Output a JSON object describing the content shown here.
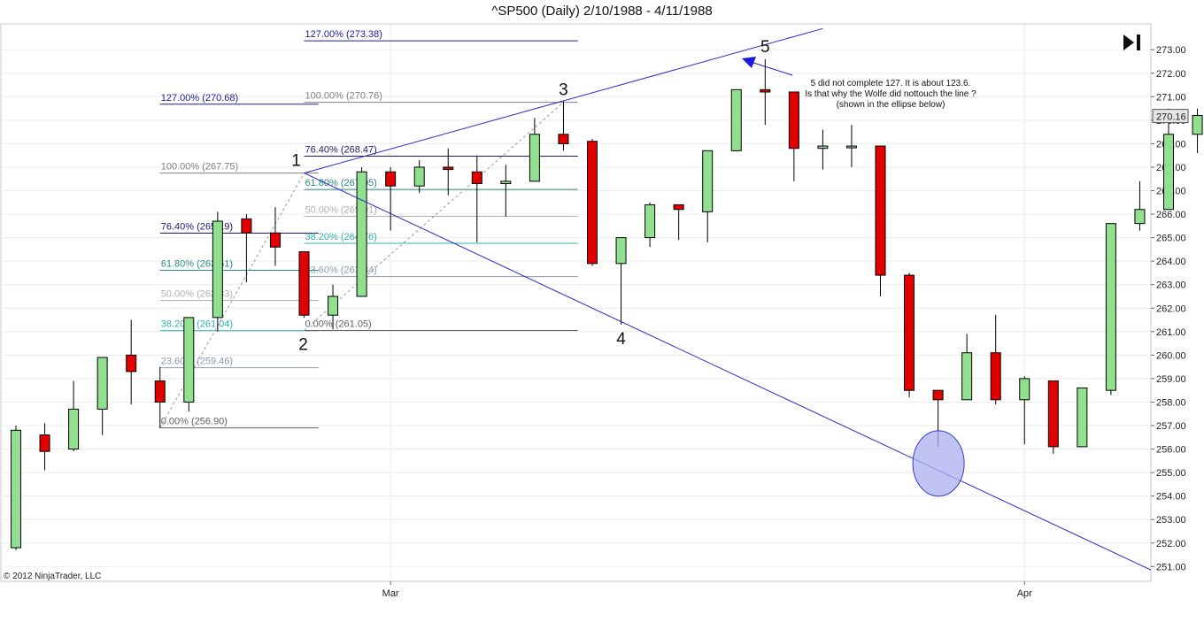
{
  "chart_data": {
    "type": "candlestick",
    "title": "^SP500 (Daily)  2/10/1988 - 4/11/1988",
    "ylim": [
      250.5,
      274.0
    ],
    "y_ticks": [
      251,
      252,
      253,
      254,
      255,
      256,
      257,
      258,
      259,
      260,
      261,
      262,
      263,
      264,
      265,
      266,
      267,
      268,
      269,
      270,
      271,
      272,
      273
    ],
    "x_ticks": [
      {
        "label": "Mar",
        "index": 13
      },
      {
        "label": "Apr",
        "index": 35
      }
    ],
    "last_price": "270.16",
    "grid": true,
    "up_color": "#90e090",
    "down_color": "#e00000",
    "candles": [
      {
        "o": 251.8,
        "h": 257.0,
        "l": 251.7,
        "c": 256.8
      },
      {
        "o": 256.6,
        "h": 257.1,
        "l": 255.1,
        "c": 255.9
      },
      {
        "o": 256.0,
        "h": 258.9,
        "l": 255.9,
        "c": 257.7
      },
      {
        "o": 257.7,
        "h": 259.9,
        "l": 256.6,
        "c": 259.9
      },
      {
        "o": 260.0,
        "h": 261.5,
        "l": 257.9,
        "c": 259.3
      },
      {
        "o": 258.9,
        "h": 259.5,
        "l": 256.9,
        "c": 258.0
      },
      {
        "o": 258.0,
        "h": 261.6,
        "l": 257.6,
        "c": 261.6
      },
      {
        "o": 261.6,
        "h": 266.1,
        "l": 261.0,
        "c": 265.7
      },
      {
        "o": 265.8,
        "h": 266.0,
        "l": 263.1,
        "c": 265.2
      },
      {
        "o": 265.2,
        "h": 266.3,
        "l": 263.8,
        "c": 264.6
      },
      {
        "o": 264.4,
        "h": 264.4,
        "l": 261.6,
        "c": 261.7
      },
      {
        "o": 261.7,
        "h": 263.0,
        "l": 261.1,
        "c": 262.5
      },
      {
        "o": 262.5,
        "h": 268.0,
        "l": 262.5,
        "c": 267.8
      },
      {
        "o": 267.8,
        "h": 268.0,
        "l": 265.3,
        "c": 267.2
      },
      {
        "o": 267.2,
        "h": 268.3,
        "l": 266.9,
        "c": 268.0
      },
      {
        "o": 268.0,
        "h": 268.8,
        "l": 266.8,
        "c": 267.9
      },
      {
        "o": 267.8,
        "h": 268.5,
        "l": 264.8,
        "c": 267.3
      },
      {
        "o": 267.3,
        "h": 268.1,
        "l": 265.9,
        "c": 267.4
      },
      {
        "o": 267.4,
        "h": 270.1,
        "l": 267.4,
        "c": 269.4
      },
      {
        "o": 269.4,
        "h": 270.8,
        "l": 268.7,
        "c": 269.0
      },
      {
        "o": 269.1,
        "h": 269.2,
        "l": 263.8,
        "c": 263.9
      },
      {
        "o": 263.9,
        "h": 265.0,
        "l": 261.3,
        "c": 265.0
      },
      {
        "o": 265.0,
        "h": 266.5,
        "l": 264.6,
        "c": 266.4
      },
      {
        "o": 266.4,
        "h": 266.4,
        "l": 264.9,
        "c": 266.2
      },
      {
        "o": 266.1,
        "h": 268.7,
        "l": 264.8,
        "c": 268.7
      },
      {
        "o": 268.7,
        "h": 271.3,
        "l": 268.7,
        "c": 271.3
      },
      {
        "o": 271.3,
        "h": 272.6,
        "l": 269.8,
        "c": 271.2
      },
      {
        "o": 271.2,
        "h": 271.2,
        "l": 267.4,
        "c": 268.8
      },
      {
        "o": 268.8,
        "h": 269.6,
        "l": 267.9,
        "c": 268.9
      },
      {
        "o": 268.9,
        "h": 269.8,
        "l": 268.0,
        "c": 268.9
      },
      {
        "o": 268.9,
        "h": 268.9,
        "l": 262.5,
        "c": 263.4
      },
      {
        "o": 263.4,
        "h": 263.5,
        "l": 258.2,
        "c": 258.5
      },
      {
        "o": 258.5,
        "h": 258.5,
        "l": 256.1,
        "c": 258.1
      },
      {
        "o": 258.1,
        "h": 260.9,
        "l": 258.1,
        "c": 260.1
      },
      {
        "o": 260.1,
        "h": 261.7,
        "l": 257.9,
        "c": 258.1
      },
      {
        "o": 258.1,
        "h": 259.1,
        "l": 256.2,
        "c": 259.0
      },
      {
        "o": 258.9,
        "h": 258.9,
        "l": 255.8,
        "c": 256.1
      },
      {
        "o": 256.1,
        "h": 258.6,
        "l": 256.1,
        "c": 258.6
      },
      {
        "o": 258.5,
        "h": 265.6,
        "l": 258.3,
        "c": 265.6
      },
      {
        "o": 265.6,
        "h": 267.4,
        "l": 265.3,
        "c": 266.2
      },
      {
        "o": 266.2,
        "h": 270.5,
        "l": 266.2,
        "c": 269.4
      },
      {
        "o": 269.4,
        "h": 270.5,
        "l": 268.6,
        "c": 270.2
      }
    ],
    "fib_sets": [
      {
        "x_start": 5,
        "x_end": 10.5,
        "levels": [
          {
            "label": "127.00% (270.68)",
            "value": 270.68,
            "color": "#1a1aa0"
          },
          {
            "label": "100.00% (267.75)",
            "value": 267.75,
            "color": "#808080"
          },
          {
            "label": "76.40% (265.19)",
            "value": 265.19,
            "color": "#1a1a70"
          },
          {
            "label": "61.80% (263.61)",
            "value": 263.61,
            "color": "#2a8a80"
          },
          {
            "label": "50.00% (262.33)",
            "value": 262.33,
            "color": "#b0b0b0"
          },
          {
            "label": "38.20% (261.04)",
            "value": 261.04,
            "color": "#30b0b0"
          },
          {
            "label": "23.60% (259.46)",
            "value": 259.46,
            "color": "#8a9ab0"
          },
          {
            "label": "0.00% (256.90)",
            "value": 256.9,
            "color": "#606060"
          }
        ]
      },
      {
        "x_start": 10,
        "x_end": 19.5,
        "levels": [
          {
            "label": "127.00% (273.38)",
            "value": 273.38,
            "color": "#1a1aa0"
          },
          {
            "label": "100.00% (270.76)",
            "value": 270.76,
            "color": "#808080"
          },
          {
            "label": "76.40% (268.47)",
            "value": 268.47,
            "color": "#1a1a70"
          },
          {
            "label": "61.80% (267.05)",
            "value": 267.05,
            "color": "#2a8a80"
          },
          {
            "label": "50.00% (265.91)",
            "value": 265.91,
            "color": "#b0b0b0"
          },
          {
            "label": "38.20% (264.76)",
            "value": 264.76,
            "color": "#30b0b0"
          },
          {
            "label": "23.60% (263.34)",
            "value": 263.34,
            "color": "#8a9ab0"
          },
          {
            "label": "0.00% (261.05)",
            "value": 261.05,
            "color": "#606060"
          }
        ]
      }
    ],
    "wave_labels": [
      {
        "label": "1",
        "index": 10,
        "value": 267.75,
        "position": "above"
      },
      {
        "label": "2",
        "index": 10,
        "value": 261.05,
        "position": "below"
      },
      {
        "label": "3",
        "index": 19,
        "value": 270.76,
        "position": "above"
      },
      {
        "label": "4",
        "index": 21,
        "value": 261.3,
        "position": "below"
      },
      {
        "label": "5",
        "index": 26,
        "value": 272.6,
        "position": "above"
      }
    ],
    "trend_lines": [
      {
        "from": {
          "index": 10,
          "value": 267.75
        },
        "to": {
          "index": 28,
          "value": 273.9
        },
        "color": "#2a2ad0"
      },
      {
        "from": {
          "index": 10,
          "value": 267.75
        },
        "to": {
          "index": 40,
          "value": 250.5
        },
        "color": "#2a2ad0"
      }
    ],
    "annotation": {
      "lines": [
        "5 did not complete 127. It is about 123.6.",
        "Is that why the Wolfe did nottouch the line ?",
        "(shown in the ellipse below)"
      ]
    },
    "ellipse": {
      "index": 32,
      "value": 255.5,
      "color": "#aab0ee"
    },
    "copyright": "© 2012 NinjaTrader, LLC"
  }
}
